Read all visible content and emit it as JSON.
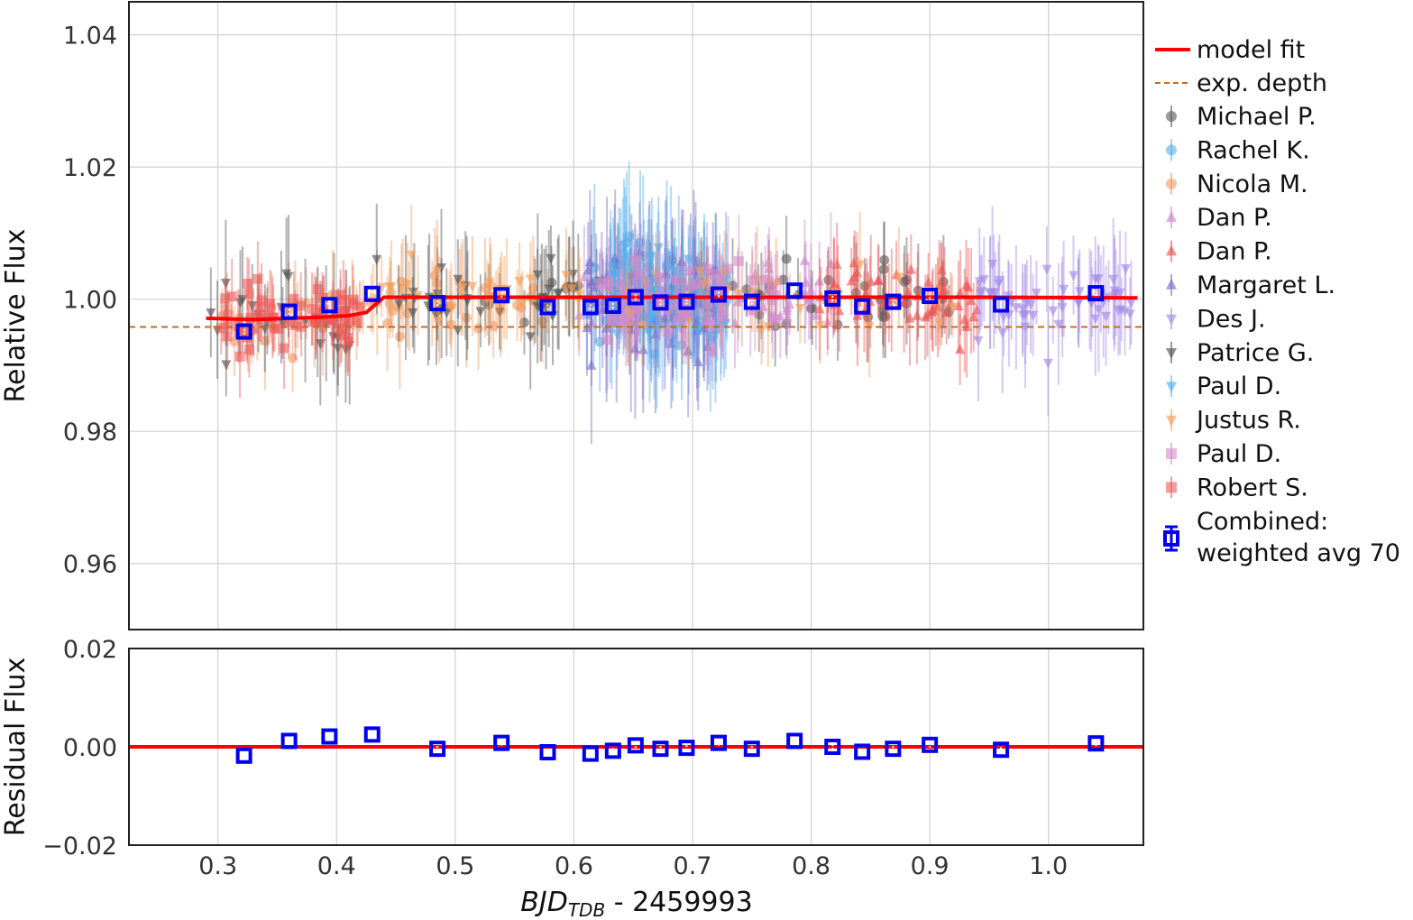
{
  "chart_data": {
    "type": "scatter",
    "main_panel": {
      "ylabel": "Relative Flux",
      "xlim": [
        0.225,
        1.08
      ],
      "ylim": [
        0.95,
        1.045
      ],
      "yticks": [
        0.96,
        0.98,
        1.0,
        1.02,
        1.04
      ],
      "ytick_labels": [
        "0.96",
        "0.98",
        "1.00",
        "1.02",
        "1.04"
      ],
      "expected_depth": 0.9958,
      "model_fit": {
        "x": [
          0.29,
          0.33,
          0.36,
          0.39,
          0.41,
          0.425,
          0.44,
          0.48,
          0.55,
          0.65,
          0.75,
          0.85,
          0.95,
          1.075
        ],
        "y": [
          0.9971,
          0.9969,
          0.9971,
          0.9973,
          0.9975,
          0.998,
          1.0003,
          1.0003,
          1.0003,
          1.0003,
          1.0003,
          1.0003,
          1.0003,
          1.0002
        ]
      }
    },
    "residual_panel": {
      "ylabel": "Residual Flux",
      "ylim": [
        -0.02,
        0.02
      ],
      "yticks": [
        -0.02,
        0.0,
        0.02
      ],
      "ytick_labels": [
        "−0.02",
        "0.00",
        "0.02"
      ],
      "zero_line": 0.0
    },
    "xaxis": {
      "xlabel_main": "BJD",
      "xlabel_sub": "TDB",
      "xlabel_rest": " - 2459993",
      "xticks": [
        0.3,
        0.4,
        0.5,
        0.6,
        0.7,
        0.8,
        0.9,
        1.0
      ],
      "xtick_labels": [
        "0.3",
        "0.4",
        "0.5",
        "0.6",
        "0.7",
        "0.8",
        "0.9",
        "1.0"
      ]
    },
    "grid": true,
    "legend_position": "outside-right",
    "model_fit_label": "model fit",
    "expected_depth_label": "exp. depth",
    "observers": [
      {
        "name": "Michael P.",
        "marker": "circle",
        "color": "#555555",
        "x_range": [
          0.52,
          0.93
        ],
        "scatter": 0.005
      },
      {
        "name": "Rachel K.",
        "marker": "circle",
        "color": "#5aaeea",
        "x_range": [
          0.61,
          0.73
        ],
        "scatter": 0.008
      },
      {
        "name": "Nicola M.",
        "marker": "circle",
        "color": "#f09a62",
        "x_range": [
          0.3,
          0.6
        ],
        "scatter": 0.005
      },
      {
        "name": "Dan P.",
        "marker": "triangle-up",
        "color": "#cc88cc",
        "x_range": [
          0.6,
          0.82
        ],
        "scatter": 0.005
      },
      {
        "name": "Dan P.",
        "marker": "triangle-up",
        "color": "#ee5555",
        "x_range": [
          0.8,
          0.94
        ],
        "scatter": 0.005
      },
      {
        "name": "Margaret L.",
        "marker": "triangle-up",
        "color": "#7a6fc8",
        "x_range": [
          0.61,
          0.72
        ],
        "scatter": 0.008
      },
      {
        "name": "Des J.",
        "marker": "triangle-down",
        "color": "#a58ae6",
        "x_range": [
          0.94,
          1.07
        ],
        "scatter": 0.006
      },
      {
        "name": "Patrice G.",
        "marker": "triangle-down",
        "color": "#555555",
        "x_range": [
          0.285,
          0.6
        ],
        "scatter": 0.006
      },
      {
        "name": "Paul D.",
        "marker": "triangle-down",
        "color": "#4fb0ee",
        "x_range": [
          0.63,
          0.73
        ],
        "scatter": 0.006
      },
      {
        "name": "Justus R.",
        "marker": "triangle-down",
        "color": "#f5a05a",
        "x_range": [
          0.4,
          0.92
        ],
        "scatter": 0.005
      },
      {
        "name": "Paul D.",
        "marker": "square",
        "color": "#d08ac8",
        "x_range": [
          0.62,
          0.77
        ],
        "scatter": 0.005
      },
      {
        "name": "Robert S.",
        "marker": "square",
        "color": "#ee5a5a",
        "x_range": [
          0.3,
          0.42
        ],
        "scatter": 0.004
      }
    ],
    "combined": {
      "label_line1": "Combined:",
      "label_line2": "weighted avg 70",
      "color": "#0000ee",
      "x": [
        0.322,
        0.36,
        0.394,
        0.43,
        0.485,
        0.539,
        0.578,
        0.614,
        0.633,
        0.652,
        0.673,
        0.695,
        0.722,
        0.75,
        0.786,
        0.818,
        0.843,
        0.869,
        0.9,
        0.96,
        1.04
      ],
      "y": [
        0.9951,
        0.9981,
        0.9991,
        1.0008,
        0.9994,
        1.0006,
        0.9988,
        0.9988,
        0.999,
        1.0003,
        0.9995,
        0.9996,
        1.0007,
        0.9996,
        1.0013,
        1.0001,
        0.9989,
        0.9996,
        1.0005,
        0.9992,
        1.0009
      ],
      "residuals": [
        -0.0018,
        0.0012,
        0.0021,
        0.0025,
        -0.0004,
        0.0008,
        -0.0011,
        -0.0014,
        -0.0008,
        0.0003,
        -0.0004,
        -0.0002,
        0.0008,
        -0.0004,
        0.0012,
        0.0,
        -0.001,
        -0.0004,
        0.0004,
        -0.0006,
        0.0007
      ]
    }
  }
}
